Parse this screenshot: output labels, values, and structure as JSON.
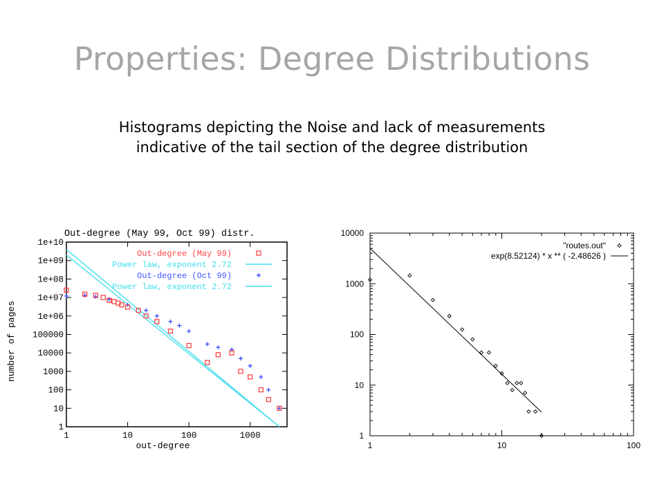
{
  "slide": {
    "title": "Properties: Degree Distributions",
    "subtitle_line1": "Histograms depicting the Noise and lack of measurements",
    "subtitle_line2": "indicative of the tail section of the degree distribution"
  },
  "chart_data": [
    {
      "type": "scatter",
      "title": "Out-degree (May 99, Oct 99) distr.",
      "xlabel": "out-degree",
      "ylabel": "number of pages",
      "log_x": true,
      "log_y": true,
      "xlim": [
        1,
        4000
      ],
      "ylim": [
        1,
        10000000000
      ],
      "x_ticks": [
        "1",
        "10",
        "100",
        "1000"
      ],
      "y_ticks": [
        "1",
        "10",
        "100",
        "1000",
        "10000",
        "100000",
        "1e+06",
        "1e+07",
        "1e+08",
        "1e+09",
        "1e+10"
      ],
      "grid": false,
      "legend_position": "top-right",
      "colors": {
        "may": "#ff4444",
        "oct": "#4455ff",
        "fit": "#44ddee"
      },
      "legend": [
        {
          "label": "Out-degree (May 99)",
          "color": "#ff4444",
          "marker": "square"
        },
        {
          "label": "Power law, exponent 2.72",
          "color": "#44ddee",
          "marker": "line"
        },
        {
          "label": "Out-degree (Oct 99)",
          "color": "#4455ff",
          "marker": "plus"
        },
        {
          "label": "Power law, exponent 2.72",
          "color": "#44ddee",
          "marker": "line"
        }
      ],
      "series": [
        {
          "name": "Out-degree (May 99)",
          "x": [
            1,
            2,
            3,
            4,
            5,
            6,
            7,
            8,
            10,
            15,
            20,
            30,
            50,
            100,
            200,
            300,
            500,
            700,
            1000,
            1500,
            2000,
            3000
          ],
          "y": [
            25000000,
            15000000,
            13000000,
            10000000,
            7000000,
            6000000,
            5000000,
            4000000,
            3000000,
            2000000,
            1000000,
            500000,
            150000,
            25000,
            3000,
            8000,
            10000,
            1000,
            500,
            100,
            30,
            10
          ]
        },
        {
          "name": "Out-degree (Oct 99)",
          "x": [
            1,
            2,
            3,
            5,
            10,
            20,
            30,
            50,
            70,
            100,
            200,
            300,
            500,
            700,
            1000,
            1500,
            2000,
            3000
          ],
          "y": [
            12000000,
            13000000,
            11000000,
            8000000,
            4000000,
            2000000,
            1000000,
            500000,
            300000,
            150000,
            30000,
            20000,
            15000,
            5000,
            2000,
            500,
            100,
            10
          ]
        },
        {
          "name": "Power law, exponent 2.72",
          "x": [
            1,
            3000
          ],
          "y": [
            4000000000,
            1
          ]
        },
        {
          "name": "Power law, exponent 2.72",
          "x": [
            1,
            3000
          ],
          "y": [
            2000000000,
            0.5
          ]
        }
      ]
    },
    {
      "type": "scatter",
      "title": "",
      "xlabel": "",
      "ylabel": "",
      "log_x": true,
      "log_y": true,
      "xlim": [
        1,
        100
      ],
      "ylim": [
        1,
        10000
      ],
      "x_ticks": [
        "1",
        "10",
        "100"
      ],
      "y_ticks": [
        "1",
        "10",
        "100",
        "1000",
        "10000"
      ],
      "grid": false,
      "legend_position": "top-right",
      "legend": [
        {
          "label": "\"routes.out\"",
          "marker": "diamond"
        },
        {
          "label": "exp(8.52124)  * x ** (  -2.48626 )",
          "marker": "line"
        }
      ],
      "series": [
        {
          "name": "\"routes.out\"",
          "x": [
            1,
            2,
            3,
            4,
            5,
            6,
            7,
            8,
            9,
            10,
            11,
            12,
            13,
            14,
            15,
            16,
            18,
            20
          ],
          "y": [
            1200,
            1450,
            480,
            230,
            125,
            80,
            44,
            44,
            24,
            17,
            11,
            8,
            11,
            11,
            7,
            3,
            3,
            1
          ]
        },
        {
          "name": "exp(8.52124)  * x ** (  -2.48626 )",
          "fit": {
            "a": 8.52124,
            "b": -2.48626
          },
          "x": [
            1,
            20
          ]
        }
      ]
    }
  ]
}
